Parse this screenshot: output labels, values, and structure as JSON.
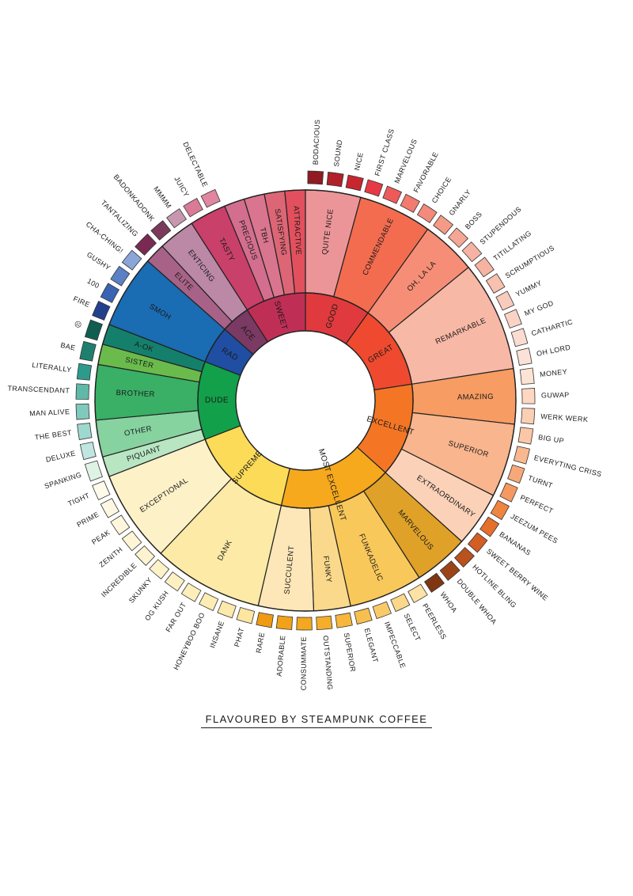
{
  "caption": "FLAVOURED BY STEAMPUNK COFFEE",
  "wheel": {
    "inner": [
      {
        "name": "GOOD",
        "color": "#e03a3e",
        "mid": [
          {
            "name": "QUITE NICE",
            "color": "#ec9598",
            "outer": [
              {
                "name": "BODACIOUS",
                "color": "#8e1c22"
              },
              {
                "name": "SOUND",
                "color": "#b2202a"
              },
              {
                "name": "NICE",
                "color": "#c8262f"
              }
            ]
          },
          {
            "name": "COMMENDABLE",
            "color": "#f36c4f",
            "outer": [
              {
                "name": "FIRST CLASS",
                "color": "#e63946"
              },
              {
                "name": "MARVELOUS",
                "color": "#ee5a5a"
              },
              {
                "name": "FAVORABLE",
                "color": "#f27a6e"
              },
              {
                "name": "CHOICE",
                "color": "#f38a7c"
              }
            ]
          }
        ]
      },
      {
        "name": "GREAT",
        "color": "#ef4a2f",
        "mid": [
          {
            "name": "OH, LA LA",
            "color": "#f68e77",
            "outer": [
              {
                "name": "GNARLY",
                "color": "#f49a86"
              },
              {
                "name": "BOSS",
                "color": "#f5a795"
              },
              {
                "name": "STUPENDOUS",
                "color": "#f6b2a2"
              }
            ]
          },
          {
            "name": "REMARKABLE",
            "color": "#f8b8a6",
            "outer": [
              {
                "name": "TITILLATING",
                "color": "#f6b3a1"
              },
              {
                "name": "SCRUMPTIOUS",
                "color": "#f8c0af"
              },
              {
                "name": "YUMMY",
                "color": "#f9cbbd"
              },
              {
                "name": "MY GOD",
                "color": "#fad3c6"
              },
              {
                "name": "CATHARTIC",
                "color": "#fbdcd0"
              },
              {
                "name": "OH LORD",
                "color": "#fbe2d8"
              }
            ]
          }
        ]
      },
      {
        "name": "EXCELLENT",
        "color": "#f47625",
        "mid": [
          {
            "name": "AMAZING",
            "color": "#f79c63",
            "outer": [
              {
                "name": "MONEY",
                "color": "#fce4d4"
              },
              {
                "name": "GUWAP",
                "color": "#fcd8c2"
              },
              {
                "name": "WERK WERK",
                "color": "#fbcfb4"
              }
            ]
          },
          {
            "name": "SUPERIOR",
            "color": "#f9b58d",
            "outer": [
              {
                "name": "BIG UP",
                "color": "#fbc7a7"
              },
              {
                "name": "EVERYTING CRISS",
                "color": "#f9b88e"
              },
              {
                "name": "TURNT",
                "color": "#f7a878"
              },
              {
                "name": "PERFECT",
                "color": "#f59862"
              }
            ]
          },
          {
            "name": "EXTRAORDINARY",
            "color": "#fbd2b8",
            "outer": [
              {
                "name": "JEEZUM PEES",
                "color": "#ef8541"
              },
              {
                "name": "BANANAS",
                "color": "#e66f2b"
              },
              {
                "name": "SWEET BERRY WINE",
                "color": "#d35d22"
              }
            ]
          }
        ]
      },
      {
        "name": "MOST EXCELLENT",
        "color": "#f6a91d",
        "mid": [
          {
            "name": "MARVELOUS",
            "color": "#dfa128",
            "outer": [
              {
                "name": "HOTLINE BLING",
                "color": "#b9521e"
              },
              {
                "name": "DOUBLE WHOA",
                "color": "#9c4418"
              },
              {
                "name": "WHOA",
                "color": "#7f3613"
              }
            ]
          },
          {
            "name": "FUNKADELIC",
            "color": "#f9c85b",
            "outer": [
              {
                "name": "PEERLESS",
                "color": "#fde2a6"
              },
              {
                "name": "SELECT",
                "color": "#fbd78a"
              },
              {
                "name": "IMPECCABLE",
                "color": "#f9ca6a"
              },
              {
                "name": "ELEGANT",
                "color": "#f7bf50"
              }
            ]
          },
          {
            "name": "FUNKY",
            "color": "#fbd98c",
            "outer": [
              {
                "name": "SUPERIOR",
                "color": "#f6b73b"
              },
              {
                "name": "OUTSTANDING",
                "color": "#f4ae2a"
              }
            ]
          },
          {
            "name": "SUCCULENT",
            "color": "#fde6b8",
            "outer": [
              {
                "name": "CONSUMMATE",
                "color": "#f3a81f"
              },
              {
                "name": "ADORABLE",
                "color": "#f2a11a"
              },
              {
                "name": "RARE",
                "color": "#ee9a12"
              }
            ]
          }
        ]
      },
      {
        "name": "SUPREME",
        "color": "#fcdb58",
        "mid": [
          {
            "name": "DANK",
            "color": "#fdeaa6",
            "outer": [
              {
                "name": "PHAT",
                "color": "#fce6a0"
              },
              {
                "name": "INSANE",
                "color": "#fce9ab"
              },
              {
                "name": "HONEYBOO BOO",
                "color": "#fdecb4"
              },
              {
                "name": "FAR OUT",
                "color": "#fdeebb"
              },
              {
                "name": "OG KUSH",
                "color": "#fdf0c3"
              },
              {
                "name": "SKUNKY",
                "color": "#fef2c9"
              }
            ]
          },
          {
            "name": "EXCEPTIONAL",
            "color": "#fdf1c8",
            "outer": [
              {
                "name": "INCREDIBLE",
                "color": "#fdf3d0"
              },
              {
                "name": "ZENITH",
                "color": "#fef5d6"
              },
              {
                "name": "PEAK",
                "color": "#fef7dd"
              },
              {
                "name": "PRIME",
                "color": "#fef8e3"
              },
              {
                "name": "TIGHT",
                "color": "#fffaea"
              }
            ]
          }
        ]
      },
      {
        "name": "DUDE",
        "color": "#12a04b",
        "mid": [
          {
            "name": "PIQUANT",
            "color": "#b8e5c2",
            "outer": [
              {
                "name": "SPANKING",
                "color": "#dff3e4"
              }
            ]
          },
          {
            "name": "OTHER",
            "color": "#86d3a0",
            "outer": [
              {
                "name": "DELUXE",
                "color": "#bfe6e0"
              },
              {
                "name": "THE BEST",
                "color": "#9ed8cf"
              }
            ]
          },
          {
            "name": "BROTHER",
            "color": "#3aaf66",
            "outer": [
              {
                "name": "MAN ALIVE",
                "color": "#7fcabd"
              },
              {
                "name": "TRANSCENDANT",
                "color": "#5fb9a8"
              },
              {
                "name": "LITERALLY",
                "color": "#2e9a8c"
              }
            ]
          },
          {
            "name": "SISTER",
            "color": "#6bbb4c",
            "outer": [
              {
                "name": "BAE",
                "color": "#1f7f6f"
              }
            ]
          },
          {
            "name": "A-OK",
            "color": "#14806c",
            "outer": [
              {
                "name": "☹",
                "color": "#0f5e50"
              }
            ]
          }
        ]
      },
      {
        "name": "RAD",
        "color": "#1f4ea3",
        "mid": [
          {
            "name": "SMOH",
            "color": "#1a6cb3",
            "outer": [
              {
                "name": "FIRE",
                "color": "#23408f"
              },
              {
                "name": "100",
                "color": "#3b63b4"
              },
              {
                "name": "GUSHY",
                "color": "#5c80c5"
              },
              {
                "name": "CHA-CHING!",
                "color": "#8aa6d8"
              }
            ]
          }
        ]
      },
      {
        "name": "ACE",
        "color": "#7a3a63",
        "mid": [
          {
            "name": "ELITE",
            "color": "#a86287",
            "outer": [
              {
                "name": "TANTALIZING",
                "color": "#7a2a52"
              }
            ]
          },
          {
            "name": "ENTICING",
            "color": "#bb88a6",
            "outer": [
              {
                "name": "BADONKADONK",
                "color": "#7b3a5c"
              },
              {
                "name": "MMMM",
                "color": "#c797b0"
              }
            ]
          }
        ]
      },
      {
        "name": "SWEET",
        "color": "#bf2f55",
        "mid": [
          {
            "name": "TASTY",
            "color": "#c9406a",
            "outer": [
              {
                "name": "JUICY",
                "color": "#d97b96"
              },
              {
                "name": "DELECTABLE",
                "color": "#e0869f"
              }
            ]
          },
          {
            "name": "PRECIOUS",
            "color": "#d36e8e",
            "outer": []
          },
          {
            "name": "TBH",
            "color": "#d9758e",
            "outer": []
          },
          {
            "name": "SATISFYING",
            "color": "#dc6675",
            "outer": []
          },
          {
            "name": "ATTRACTIVE",
            "color": "#e2505d",
            "outer": []
          }
        ]
      }
    ]
  }
}
